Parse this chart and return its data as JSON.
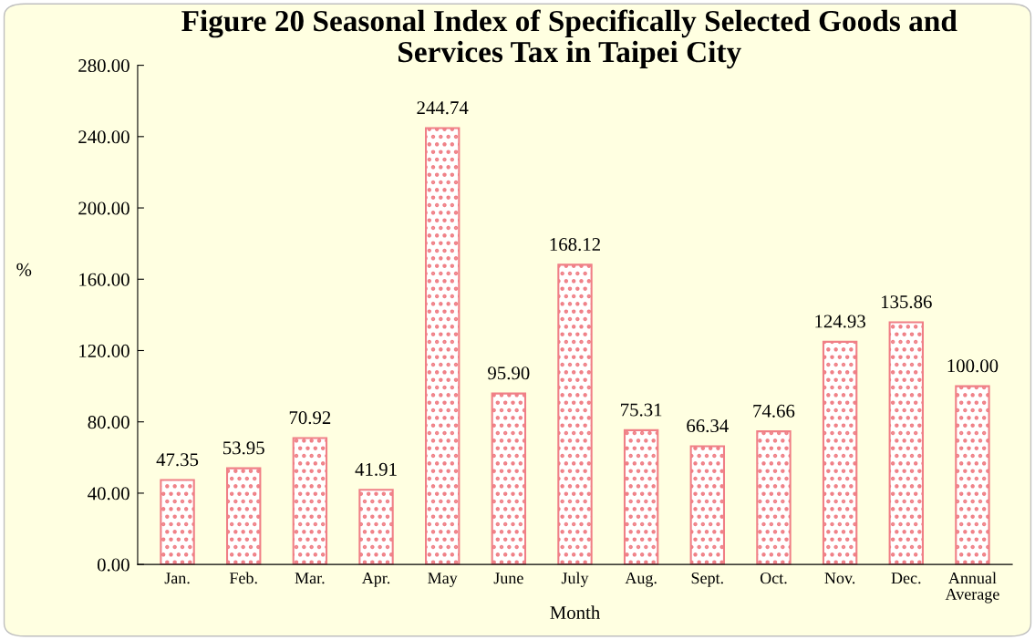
{
  "chart_data": {
    "type": "bar",
    "title": "Figure 20 Seasonal Index of Specifically Selected Goods and\nServices Tax in Taipei City",
    "xlabel": "Month",
    "ylabel": "%",
    "categories": [
      "Jan.",
      "Feb.",
      "Mar.",
      "Apr.",
      "May",
      "June",
      "July",
      "Aug.",
      "Sept.",
      "Oct.",
      "Nov.",
      "Dec.",
      "Annual\nAverage"
    ],
    "values": [
      47.35,
      53.95,
      70.92,
      41.91,
      244.74,
      95.9,
      168.12,
      75.31,
      66.34,
      74.66,
      124.93,
      135.86,
      100.0
    ],
    "value_labels": [
      "47.35",
      "53.95",
      "70.92",
      "41.91",
      "244.74",
      "95.90",
      "168.12",
      "75.31",
      "66.34",
      "74.66",
      "124.93",
      "135.86",
      "100.00"
    ],
    "color": "#f07f86",
    "ylim": [
      0,
      280
    ],
    "yticks": [
      {
        "value": 0,
        "label": "0.00"
      },
      {
        "value": 40,
        "label": "40.00"
      },
      {
        "value": 80,
        "label": "80.00"
      },
      {
        "value": 120,
        "label": "120.00"
      },
      {
        "value": 160,
        "label": "160.00"
      },
      {
        "value": 200,
        "label": "200.00"
      },
      {
        "value": 240,
        "label": "240.00"
      },
      {
        "value": 280,
        "label": "280.00"
      }
    ],
    "grid": false,
    "legend": false
  }
}
